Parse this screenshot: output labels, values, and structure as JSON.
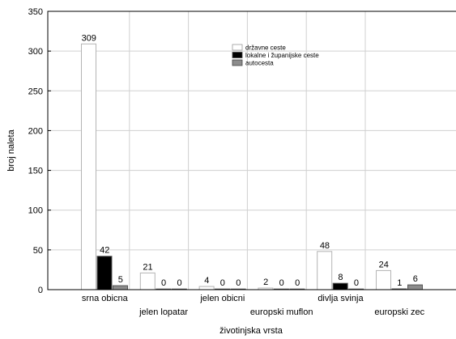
{
  "chart_data": {
    "type": "bar",
    "title": "",
    "xlabel": "životinjska vrsta",
    "ylabel": "broj naleta",
    "ylim": [
      0,
      350
    ],
    "yticks": [
      0,
      50,
      100,
      150,
      200,
      250,
      300,
      350
    ],
    "grid": true,
    "legend_position": "top-center",
    "categories": [
      "srna obicna",
      "jelen lopatar",
      "jelen obicni",
      "europski muflon",
      "divlja svinja",
      "europski zec"
    ],
    "series": [
      {
        "name": "državne ceste",
        "values": [
          309,
          21,
          4,
          2,
          48,
          24
        ],
        "color": "#ffffff"
      },
      {
        "name": "lokalne i županijske ceste",
        "values": [
          42,
          0,
          0,
          0,
          8,
          1
        ],
        "color": "#000000"
      },
      {
        "name": "autocesta",
        "values": [
          5,
          0,
          0,
          0,
          0,
          6
        ],
        "color": "#8c8c8c"
      }
    ]
  }
}
